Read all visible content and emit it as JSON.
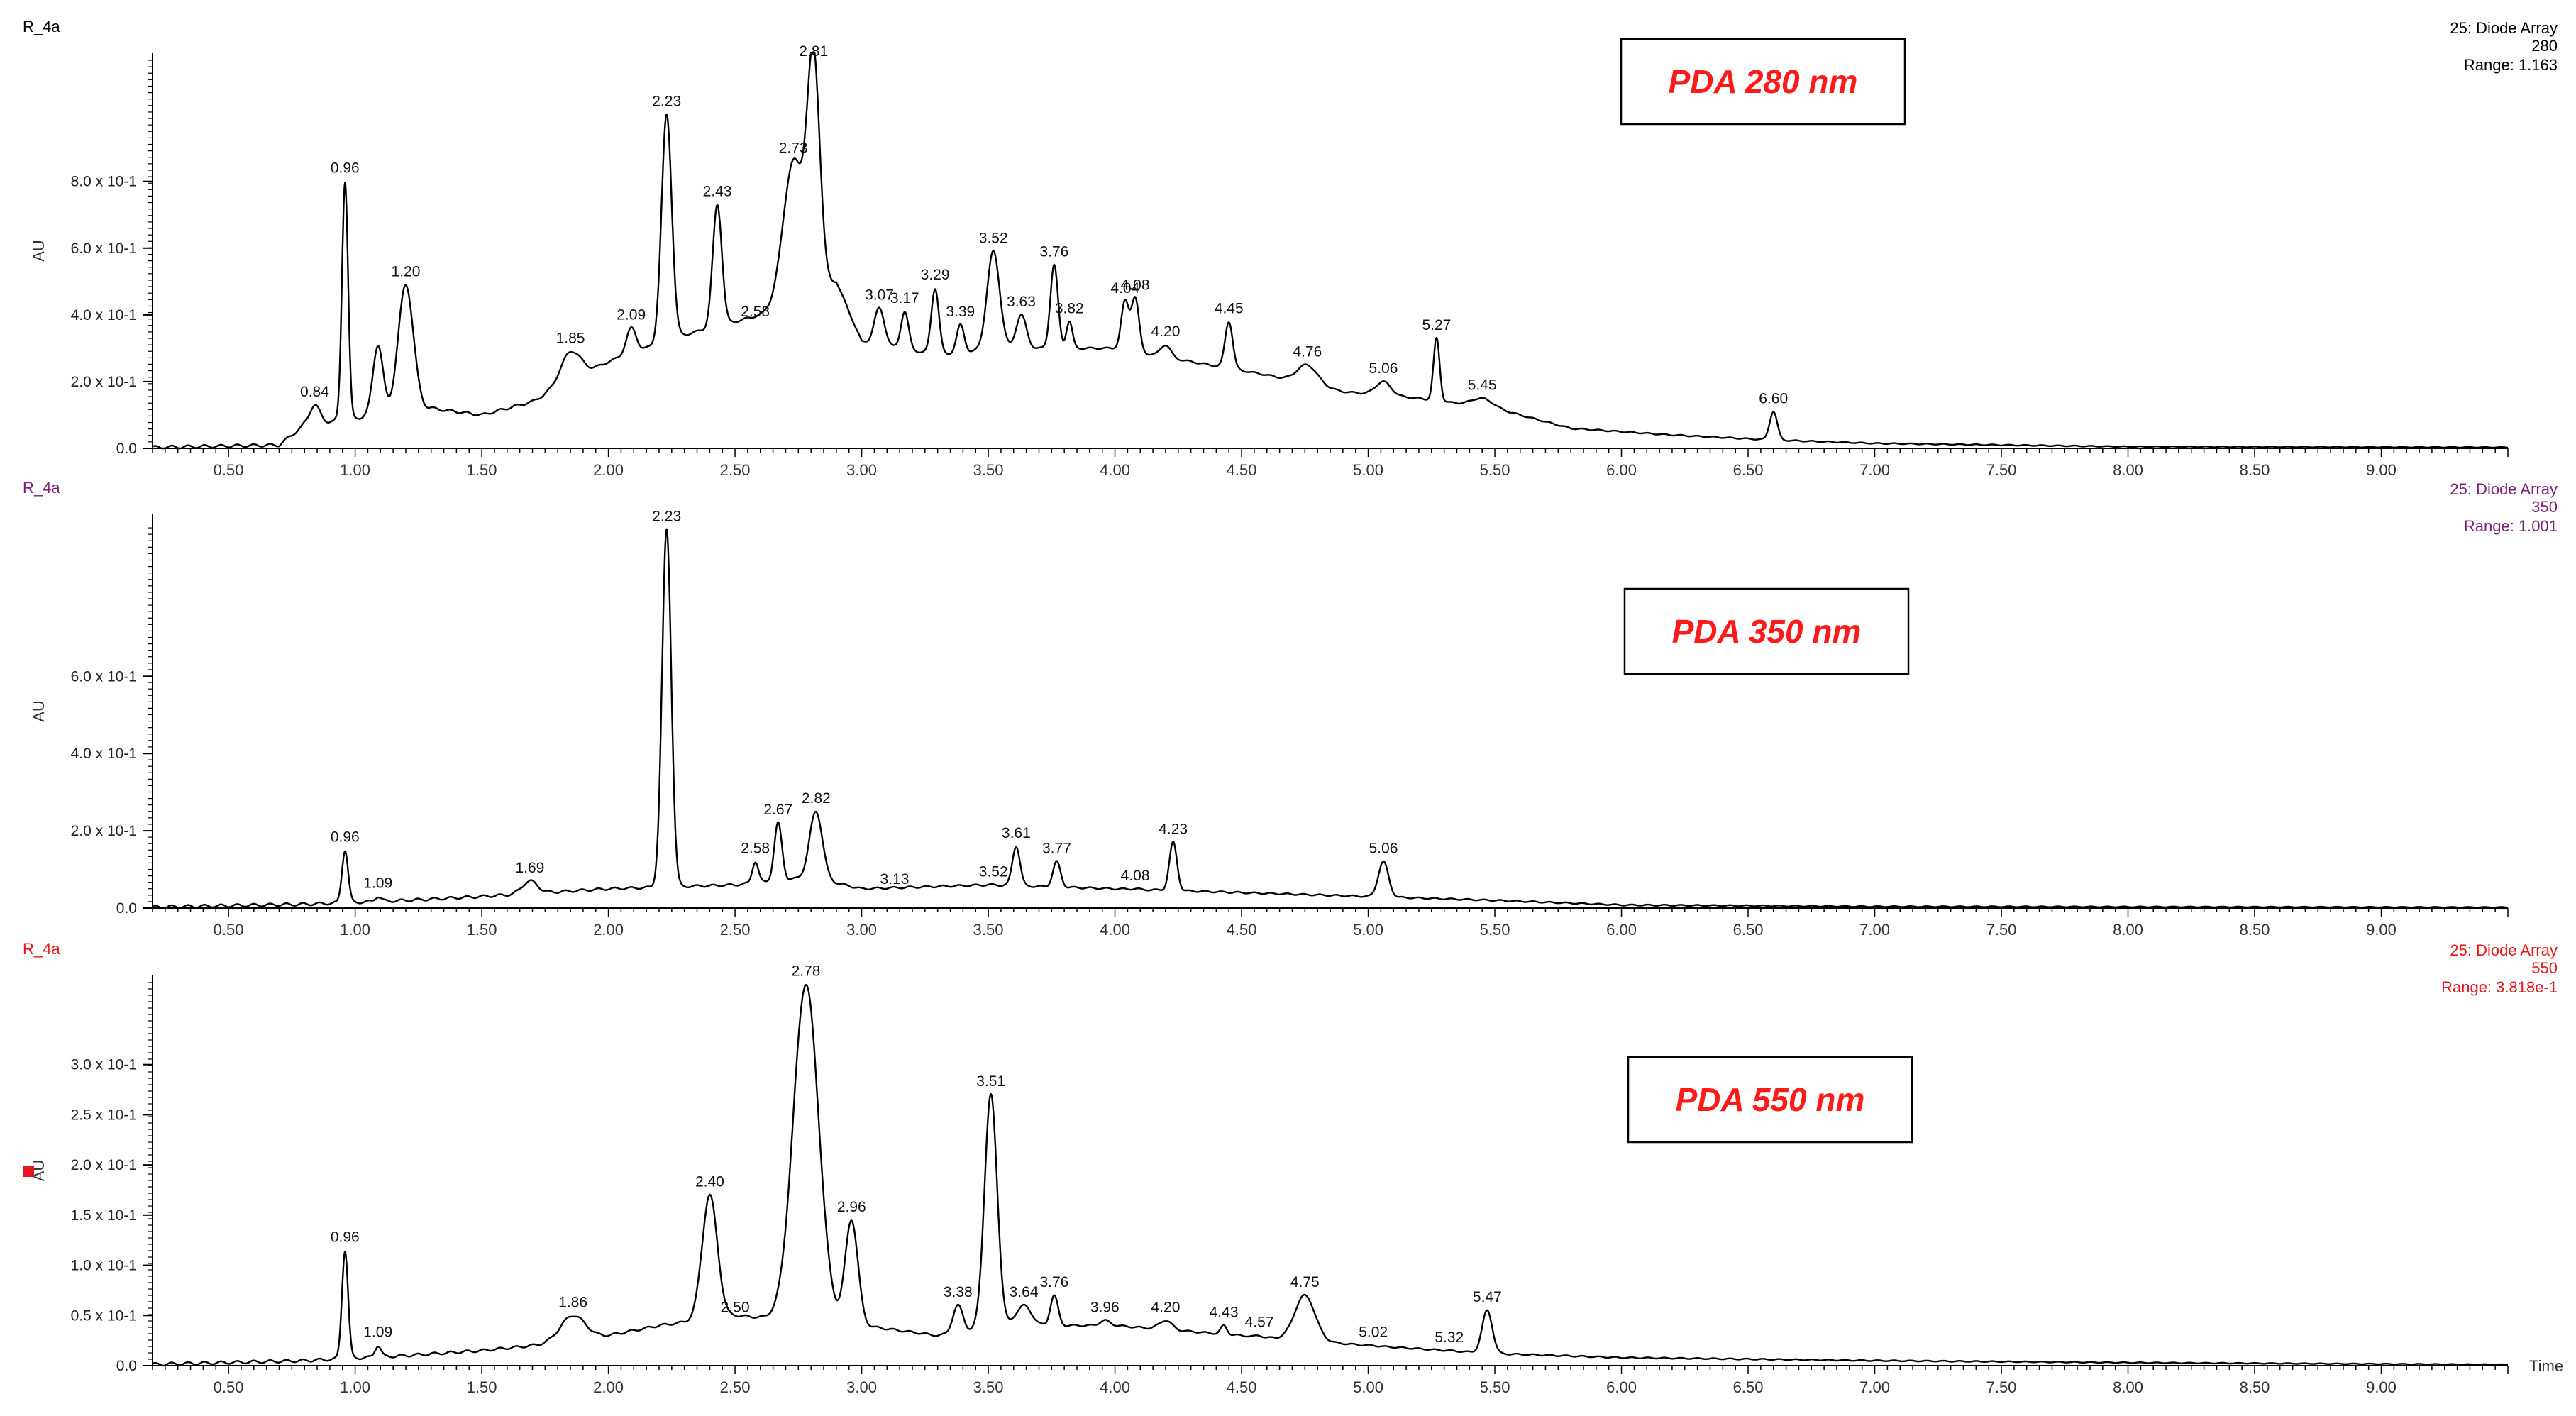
{
  "colors": {
    "panel1": "#000000",
    "panel2": "#7a1f7a",
    "panel3": "#e8161b",
    "trace": "#000000",
    "pda_label": "#ff1a1a"
  },
  "chart_data": [
    {
      "type": "line",
      "sample": "R_4a",
      "detector": "25: Diode Array",
      "wavelength": "280",
      "range": "Range: 1.163",
      "box_label": "PDA 280 nm",
      "ylabel": "AU",
      "xlim": [
        0,
        9.5
      ],
      "ylim": [
        0,
        1.163
      ],
      "xticks": [
        "0.50",
        "1.00",
        "1.50",
        "2.00",
        "2.50",
        "3.00",
        "3.50",
        "4.00",
        "4.50",
        "5.00",
        "5.50",
        "6.00",
        "6.50",
        "7.00",
        "7.50",
        "8.00",
        "8.50",
        "9.00"
      ],
      "yticks": [
        {
          "v": 0,
          "label": "0.0"
        },
        {
          "v": 0.2,
          "label": "2.0 x 10-1"
        },
        {
          "v": 0.4,
          "label": "4.0 x 10-1"
        },
        {
          "v": 0.6,
          "label": "6.0 x 10-1"
        },
        {
          "v": 0.8,
          "label": "8.0 x 10-1"
        }
      ],
      "baseline": [
        [
          0,
          0
        ],
        [
          0.7,
          0.01
        ],
        [
          0.8,
          0.07
        ],
        [
          1.3,
          0.12
        ],
        [
          1.5,
          0.1
        ],
        [
          1.7,
          0.14
        ],
        [
          2.0,
          0.26
        ],
        [
          2.3,
          0.34
        ],
        [
          2.6,
          0.4
        ],
        [
          2.9,
          0.5
        ],
        [
          3.0,
          0.32
        ],
        [
          3.3,
          0.28
        ],
        [
          3.6,
          0.3
        ],
        [
          4.0,
          0.3
        ],
        [
          4.3,
          0.26
        ],
        [
          4.6,
          0.22
        ],
        [
          4.9,
          0.17
        ],
        [
          5.2,
          0.15
        ],
        [
          5.5,
          0.12
        ],
        [
          5.8,
          0.06
        ],
        [
          6.2,
          0.04
        ],
        [
          6.6,
          0.025
        ],
        [
          7.0,
          0.015
        ],
        [
          7.5,
          0.01
        ],
        [
          8.0,
          0.005
        ],
        [
          9.5,
          0.003
        ]
      ],
      "peaks": [
        {
          "rt": 0.84,
          "height": 0.13,
          "width": 0.02,
          "label": "0.84"
        },
        {
          "rt": 0.96,
          "height": 0.8,
          "width": 0.012,
          "label": "0.96"
        },
        {
          "rt": 1.09,
          "height": 0.31,
          "width": 0.02,
          "label": ""
        },
        {
          "rt": 1.2,
          "height": 0.49,
          "width": 0.03,
          "label": "1.20"
        },
        {
          "rt": 1.85,
          "height": 0.29,
          "width": 0.04,
          "label": "1.85"
        },
        {
          "rt": 2.09,
          "height": 0.36,
          "width": 0.02,
          "label": "2.09"
        },
        {
          "rt": 2.23,
          "height": 1.0,
          "width": 0.02,
          "label": "2.23"
        },
        {
          "rt": 2.43,
          "height": 0.73,
          "width": 0.018,
          "label": "2.43"
        },
        {
          "rt": 2.58,
          "height": 0.37,
          "width": 0.015,
          "label": "2.58"
        },
        {
          "rt": 2.73,
          "height": 0.86,
          "width": 0.04,
          "label": "2.73"
        },
        {
          "rt": 2.81,
          "height": 1.15,
          "width": 0.025,
          "label": "2.81"
        },
        {
          "rt": 3.07,
          "height": 0.42,
          "width": 0.02,
          "label": "3.07"
        },
        {
          "rt": 3.17,
          "height": 0.41,
          "width": 0.015,
          "label": "3.17"
        },
        {
          "rt": 3.29,
          "height": 0.48,
          "width": 0.015,
          "label": "3.29"
        },
        {
          "rt": 3.39,
          "height": 0.37,
          "width": 0.015,
          "label": "3.39"
        },
        {
          "rt": 3.52,
          "height": 0.59,
          "width": 0.025,
          "label": "3.52"
        },
        {
          "rt": 3.63,
          "height": 0.4,
          "width": 0.02,
          "label": "3.63"
        },
        {
          "rt": 3.76,
          "height": 0.55,
          "width": 0.015,
          "label": "3.76"
        },
        {
          "rt": 3.82,
          "height": 0.38,
          "width": 0.012,
          "label": "3.82"
        },
        {
          "rt": 4.04,
          "height": 0.44,
          "width": 0.015,
          "label": "4.04"
        },
        {
          "rt": 4.08,
          "height": 0.45,
          "width": 0.015,
          "label": "4.08"
        },
        {
          "rt": 4.2,
          "height": 0.31,
          "width": 0.02,
          "label": "4.20"
        },
        {
          "rt": 4.45,
          "height": 0.38,
          "width": 0.015,
          "label": "4.45"
        },
        {
          "rt": 4.76,
          "height": 0.25,
          "width": 0.04,
          "label": "4.76"
        },
        {
          "rt": 5.06,
          "height": 0.2,
          "width": 0.03,
          "label": "5.06"
        },
        {
          "rt": 5.27,
          "height": 0.33,
          "width": 0.012,
          "label": "5.27"
        },
        {
          "rt": 5.45,
          "height": 0.15,
          "width": 0.04,
          "label": "5.45"
        },
        {
          "rt": 6.6,
          "height": 0.11,
          "width": 0.015,
          "label": "6.60"
        }
      ]
    },
    {
      "type": "line",
      "sample": "R_4a",
      "detector": "25: Diode Array",
      "wavelength": "350",
      "range": "Range: 1.001",
      "box_label": "PDA 350 nm",
      "ylabel": "AU",
      "xlim": [
        0,
        9.5
      ],
      "ylim": [
        0,
        1.001
      ],
      "xticks": [
        "0.50",
        "1.00",
        "1.50",
        "2.00",
        "2.50",
        "3.00",
        "3.50",
        "4.00",
        "4.50",
        "5.00",
        "5.50",
        "6.00",
        "6.50",
        "7.00",
        "7.50",
        "8.00",
        "8.50",
        "9.00"
      ],
      "yticks": [
        {
          "v": 0,
          "label": "0.0"
        },
        {
          "v": 0.2,
          "label": "2.0 x 10-1"
        },
        {
          "v": 0.4,
          "label": "4.0 x 10-1"
        },
        {
          "v": 0.6,
          "label": "6.0 x 10-1"
        }
      ],
      "baseline": [
        [
          0,
          0
        ],
        [
          0.8,
          0.01
        ],
        [
          1.2,
          0.02
        ],
        [
          1.5,
          0.03
        ],
        [
          2.0,
          0.05
        ],
        [
          2.5,
          0.06
        ],
        [
          2.8,
          0.08
        ],
        [
          3.0,
          0.05
        ],
        [
          3.5,
          0.06
        ],
        [
          4.0,
          0.05
        ],
        [
          4.5,
          0.04
        ],
        [
          5.0,
          0.03
        ],
        [
          5.5,
          0.02
        ],
        [
          6.0,
          0.008
        ],
        [
          7.0,
          0.004
        ],
        [
          9.5,
          0.002
        ]
      ],
      "peaks": [
        {
          "rt": 0.96,
          "height": 0.15,
          "width": 0.012,
          "label": "0.96"
        },
        {
          "rt": 1.09,
          "height": 0.03,
          "width": 0.012,
          "label": "1.09"
        },
        {
          "rt": 1.69,
          "height": 0.07,
          "width": 0.03,
          "label": "1.69"
        },
        {
          "rt": 2.23,
          "height": 0.98,
          "width": 0.018,
          "label": "2.23"
        },
        {
          "rt": 2.58,
          "height": 0.12,
          "width": 0.012,
          "label": "2.58"
        },
        {
          "rt": 2.67,
          "height": 0.22,
          "width": 0.015,
          "label": "2.67"
        },
        {
          "rt": 2.82,
          "height": 0.25,
          "width": 0.025,
          "label": "2.82"
        },
        {
          "rt": 3.13,
          "height": 0.04,
          "width": 0.02,
          "label": "3.13"
        },
        {
          "rt": 3.52,
          "height": 0.06,
          "width": 0.02,
          "label": "3.52"
        },
        {
          "rt": 3.61,
          "height": 0.16,
          "width": 0.015,
          "label": "3.61"
        },
        {
          "rt": 3.77,
          "height": 0.12,
          "width": 0.015,
          "label": "3.77"
        },
        {
          "rt": 4.08,
          "height": 0.05,
          "width": 0.015,
          "label": "4.08"
        },
        {
          "rt": 4.23,
          "height": 0.17,
          "width": 0.015,
          "label": "4.23"
        },
        {
          "rt": 5.06,
          "height": 0.12,
          "width": 0.02,
          "label": "5.06"
        }
      ]
    },
    {
      "type": "line",
      "sample": "R_4a",
      "detector": "25: Diode Array",
      "wavelength": "550",
      "range": "Range: 3.818e-1",
      "box_label": "PDA 550 nm",
      "ylabel": "AU",
      "xlabel": "Time",
      "xlim": [
        0,
        9.5
      ],
      "ylim": [
        0,
        0.3818
      ],
      "xticks": [
        "0.50",
        "1.00",
        "1.50",
        "2.00",
        "2.50",
        "3.00",
        "3.50",
        "4.00",
        "4.50",
        "5.00",
        "5.50",
        "6.00",
        "6.50",
        "7.00",
        "7.50",
        "8.00",
        "8.50",
        "9.00"
      ],
      "yticks": [
        {
          "v": 0,
          "label": "0.0"
        },
        {
          "v": 0.05,
          "label": "0.5 x 10-1"
        },
        {
          "v": 0.1,
          "label": "1.0 x 10-1"
        },
        {
          "v": 0.15,
          "label": "1.5 x 10-1"
        },
        {
          "v": 0.2,
          "label": "2.0 x 10-1"
        },
        {
          "v": 0.25,
          "label": "2.5 x 10-1"
        },
        {
          "v": 0.3,
          "label": "3.0 x 10-1"
        }
      ],
      "baseline": [
        [
          0,
          0
        ],
        [
          0.8,
          0.005
        ],
        [
          1.2,
          0.01
        ],
        [
          1.5,
          0.015
        ],
        [
          1.9,
          0.025
        ],
        [
          2.2,
          0.04
        ],
        [
          2.5,
          0.05
        ],
        [
          3.0,
          0.04
        ],
        [
          3.3,
          0.03
        ],
        [
          3.6,
          0.04
        ],
        [
          4.0,
          0.04
        ],
        [
          4.5,
          0.03
        ],
        [
          5.0,
          0.02
        ],
        [
          5.5,
          0.012
        ],
        [
          6.0,
          0.008
        ],
        [
          7.0,
          0.005
        ],
        [
          8.0,
          0.003
        ],
        [
          9.5,
          0.001
        ]
      ],
      "peaks": [
        {
          "rt": 0.96,
          "height": 0.115,
          "width": 0.012,
          "label": "0.96"
        },
        {
          "rt": 1.09,
          "height": 0.02,
          "width": 0.012,
          "label": "1.09"
        },
        {
          "rt": 1.86,
          "height": 0.05,
          "width": 0.05,
          "label": "1.86"
        },
        {
          "rt": 2.4,
          "height": 0.17,
          "width": 0.03,
          "label": "2.40"
        },
        {
          "rt": 2.5,
          "height": 0.045,
          "width": 0.015,
          "label": "2.50"
        },
        {
          "rt": 2.78,
          "height": 0.38,
          "width": 0.05,
          "label": "2.78"
        },
        {
          "rt": 2.96,
          "height": 0.145,
          "width": 0.025,
          "label": "2.96"
        },
        {
          "rt": 3.38,
          "height": 0.06,
          "width": 0.02,
          "label": "3.38"
        },
        {
          "rt": 3.51,
          "height": 0.27,
          "width": 0.025,
          "label": "3.51"
        },
        {
          "rt": 3.64,
          "height": 0.06,
          "width": 0.03,
          "label": "3.64"
        },
        {
          "rt": 3.76,
          "height": 0.07,
          "width": 0.015,
          "label": "3.76"
        },
        {
          "rt": 3.96,
          "height": 0.045,
          "width": 0.02,
          "label": "3.96"
        },
        {
          "rt": 4.2,
          "height": 0.045,
          "width": 0.025,
          "label": "4.20"
        },
        {
          "rt": 4.43,
          "height": 0.04,
          "width": 0.012,
          "label": "4.43"
        },
        {
          "rt": 4.57,
          "height": 0.03,
          "width": 0.012,
          "label": "4.57"
        },
        {
          "rt": 4.75,
          "height": 0.07,
          "width": 0.04,
          "label": "4.75"
        },
        {
          "rt": 5.02,
          "height": 0.02,
          "width": 0.02,
          "label": "5.02"
        },
        {
          "rt": 5.32,
          "height": 0.015,
          "width": 0.012,
          "label": "5.32"
        },
        {
          "rt": 5.47,
          "height": 0.055,
          "width": 0.02,
          "label": "5.47"
        }
      ]
    }
  ]
}
